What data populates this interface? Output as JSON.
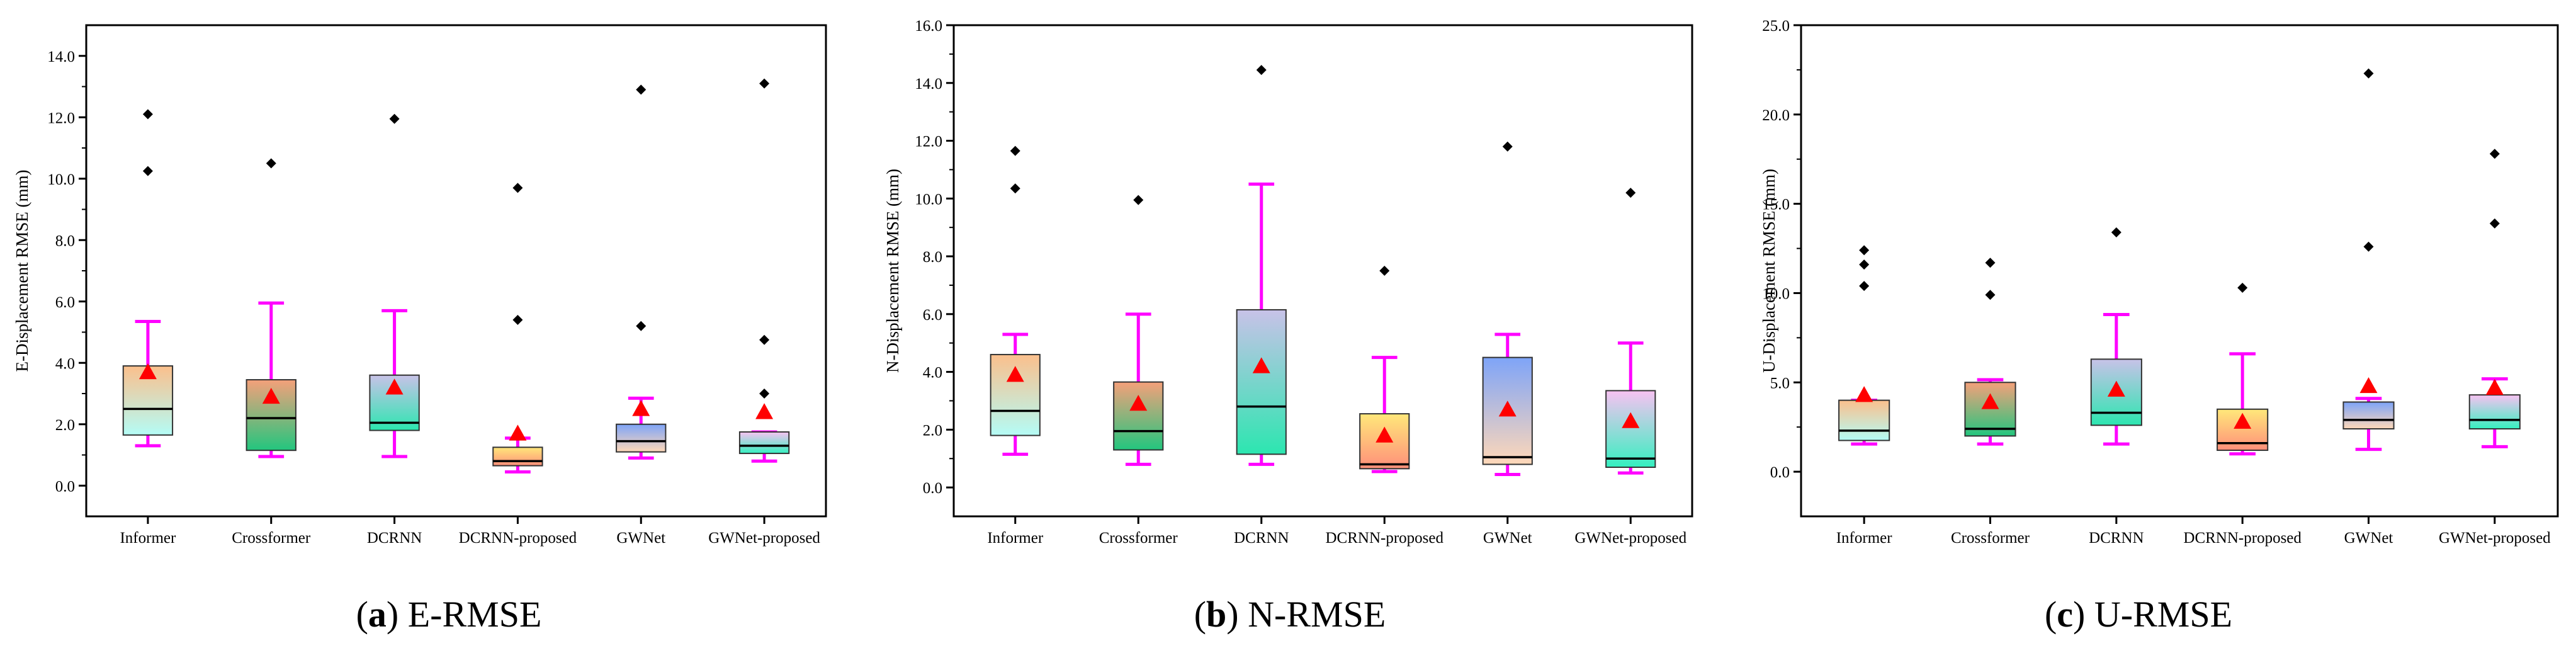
{
  "chart_data": [
    {
      "type": "box",
      "id": "a",
      "caption_letter": "a",
      "caption_text": "E-RMSE",
      "ylabel": "E-Displacement RMSE (mm)",
      "ylim": [
        -1.0,
        15.0
      ],
      "yticks": [
        0.0,
        2.0,
        4.0,
        6.0,
        8.0,
        10.0,
        12.0,
        14.0
      ],
      "ytick_labels": [
        "0.0",
        "2.0",
        "4.0",
        "6.0",
        "8.0",
        "10.0",
        "12.0",
        "14.0"
      ],
      "categories": [
        "Informer",
        "Crossformer",
        "DCRNN",
        "DCRNN-proposed",
        "GWNet",
        "GWNet-proposed"
      ],
      "boxes": [
        {
          "whisker_low": 1.3,
          "q1": 1.65,
          "median": 2.5,
          "q3": 3.9,
          "whisker_high": 5.35,
          "mean": 3.7,
          "outliers": [
            10.25,
            12.1
          ]
        },
        {
          "whisker_low": 0.95,
          "q1": 1.15,
          "median": 2.2,
          "q3": 3.45,
          "whisker_high": 5.95,
          "mean": 2.9,
          "outliers": [
            10.5
          ]
        },
        {
          "whisker_low": 0.95,
          "q1": 1.8,
          "median": 2.05,
          "q3": 3.6,
          "whisker_high": 5.7,
          "mean": 3.2,
          "outliers": [
            11.95
          ]
        },
        {
          "whisker_low": 0.45,
          "q1": 0.65,
          "median": 0.8,
          "q3": 1.25,
          "whisker_high": 1.55,
          "mean": 1.7,
          "outliers": [
            5.4,
            9.7
          ]
        },
        {
          "whisker_low": 0.9,
          "q1": 1.1,
          "median": 1.45,
          "q3": 2.0,
          "whisker_high": 2.85,
          "mean": 2.5,
          "outliers": [
            5.2,
            12.9
          ]
        },
        {
          "whisker_low": 0.8,
          "q1": 1.05,
          "median": 1.3,
          "q3": 1.75,
          "whisker_high": 1.75,
          "mean": 2.4,
          "outliers": [
            3.0,
            4.75,
            13.1
          ]
        }
      ]
    },
    {
      "type": "box",
      "id": "b",
      "caption_letter": "b",
      "caption_text": "N-RMSE",
      "ylabel": "N-Displacement RMSE (mm)",
      "ylim": [
        -1.0,
        16.0
      ],
      "yticks": [
        0.0,
        2.0,
        4.0,
        6.0,
        8.0,
        10.0,
        12.0,
        14.0,
        16.0
      ],
      "ytick_labels": [
        "0.0",
        "2.0",
        "4.0",
        "6.0",
        "8.0",
        "10.0",
        "12.0",
        "14.0",
        "16.0"
      ],
      "categories": [
        "Informer",
        "Crossformer",
        "DCRNN",
        "DCRNN-proposed",
        "GWNet",
        "GWNet-proposed"
      ],
      "boxes": [
        {
          "whisker_low": 1.15,
          "q1": 1.8,
          "median": 2.65,
          "q3": 4.6,
          "whisker_high": 5.3,
          "mean": 3.9,
          "outliers": [
            10.35,
            11.65
          ]
        },
        {
          "whisker_low": 0.8,
          "q1": 1.3,
          "median": 1.95,
          "q3": 3.65,
          "whisker_high": 6.0,
          "mean": 2.9,
          "outliers": [
            9.95
          ]
        },
        {
          "whisker_low": 0.8,
          "q1": 1.15,
          "median": 2.8,
          "q3": 6.15,
          "whisker_high": 10.5,
          "mean": 4.2,
          "outliers": [
            14.45
          ]
        },
        {
          "whisker_low": 0.55,
          "q1": 0.65,
          "median": 0.8,
          "q3": 2.55,
          "whisker_high": 4.5,
          "mean": 1.8,
          "outliers": [
            7.5
          ]
        },
        {
          "whisker_low": 0.45,
          "q1": 0.8,
          "median": 1.05,
          "q3": 4.5,
          "whisker_high": 5.3,
          "mean": 2.7,
          "outliers": [
            11.8
          ]
        },
        {
          "whisker_low": 0.5,
          "q1": 0.7,
          "median": 1.0,
          "q3": 3.35,
          "whisker_high": 5.0,
          "mean": 2.3,
          "outliers": [
            10.2
          ]
        }
      ]
    },
    {
      "type": "box",
      "id": "c",
      "caption_letter": "c",
      "caption_text": "U-RMSE",
      "ylabel": "U-Displacement RMSE (mm)",
      "ylim": [
        -2.5,
        25.0
      ],
      "yticks": [
        0.0,
        5.0,
        10.0,
        15.0,
        20.0,
        25.0
      ],
      "ytick_labels": [
        "0.0",
        "5.0",
        "10.0",
        "15.0",
        "20.0",
        "25.0"
      ],
      "categories": [
        "Informer",
        "Crossformer",
        "DCRNN",
        "DCRNN-proposed",
        "GWNet",
        "GWNet-proposed"
      ],
      "boxes": [
        {
          "whisker_low": 1.55,
          "q1": 1.75,
          "median": 2.3,
          "q3": 4.0,
          "whisker_high": 4.0,
          "mean": 4.3,
          "outliers": [
            10.4,
            11.6,
            12.4
          ]
        },
        {
          "whisker_low": 1.55,
          "q1": 2.0,
          "median": 2.4,
          "q3": 5.0,
          "whisker_high": 5.15,
          "mean": 3.9,
          "outliers": [
            9.9,
            11.7
          ]
        },
        {
          "whisker_low": 1.55,
          "q1": 2.6,
          "median": 3.3,
          "q3": 6.3,
          "whisker_high": 8.8,
          "mean": 4.6,
          "outliers": [
            13.4
          ]
        },
        {
          "whisker_low": 1.0,
          "q1": 1.2,
          "median": 1.6,
          "q3": 3.5,
          "whisker_high": 6.6,
          "mean": 2.8,
          "outliers": [
            10.3
          ]
        },
        {
          "whisker_low": 1.25,
          "q1": 2.4,
          "median": 2.9,
          "q3": 3.9,
          "whisker_high": 4.1,
          "mean": 4.8,
          "outliers": [
            12.6,
            22.3
          ]
        },
        {
          "whisker_low": 1.4,
          "q1": 2.4,
          "median": 2.9,
          "q3": 4.3,
          "whisker_high": 5.2,
          "mean": 4.7,
          "outliers": [
            13.9,
            17.8
          ]
        }
      ]
    }
  ],
  "colors": {
    "whisker": "#ff00ff",
    "median": "#000000",
    "mean_marker": "#ff0000",
    "outlier": "#000000",
    "box_gradients": [
      [
        "#fbbf8c",
        "#b4fcf6"
      ],
      [
        "#f5a07a",
        "#22c67e"
      ],
      [
        "#c8c2e8",
        "#2ce6b0"
      ],
      [
        "#ffe87a",
        "#ff8f7a"
      ],
      [
        "#7ea4f8",
        "#ffd8b8"
      ],
      [
        "#f8c2f2",
        "#35f0c0"
      ]
    ]
  }
}
